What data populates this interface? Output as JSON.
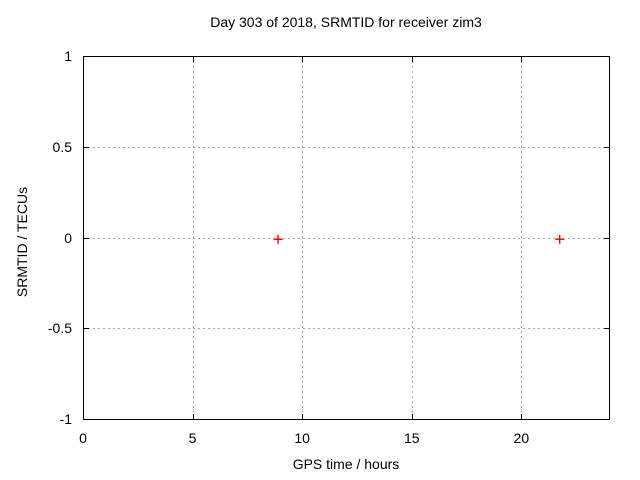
{
  "chart_data": {
    "type": "scatter",
    "title": "Day 303 of 2018, SRMTID for receiver zim3",
    "xlabel": "GPS time / hours",
    "ylabel": "SRMTID / TECUs",
    "xlim": [
      0,
      24
    ],
    "ylim": [
      -1,
      1
    ],
    "xticks": [
      0,
      5,
      10,
      15,
      20
    ],
    "xtick_labels": [
      "0",
      "5",
      "10",
      "15",
      "20"
    ],
    "yticks": [
      -1,
      -0.5,
      0,
      0.5,
      1
    ],
    "ytick_labels": [
      "-1",
      "-0.5",
      "0",
      "0.5",
      "1"
    ],
    "grid": true,
    "legend": false,
    "marker": "plus",
    "series": [
      {
        "points": [
          {
            "x": 8.9,
            "y": -0.01
          },
          {
            "x": 21.75,
            "y": -0.01
          }
        ]
      }
    ]
  },
  "colors": {
    "background": "#ffffff",
    "text": "#000000",
    "border": "#000000",
    "grid": "#a8a8a8",
    "marker": "#ff0000"
  }
}
